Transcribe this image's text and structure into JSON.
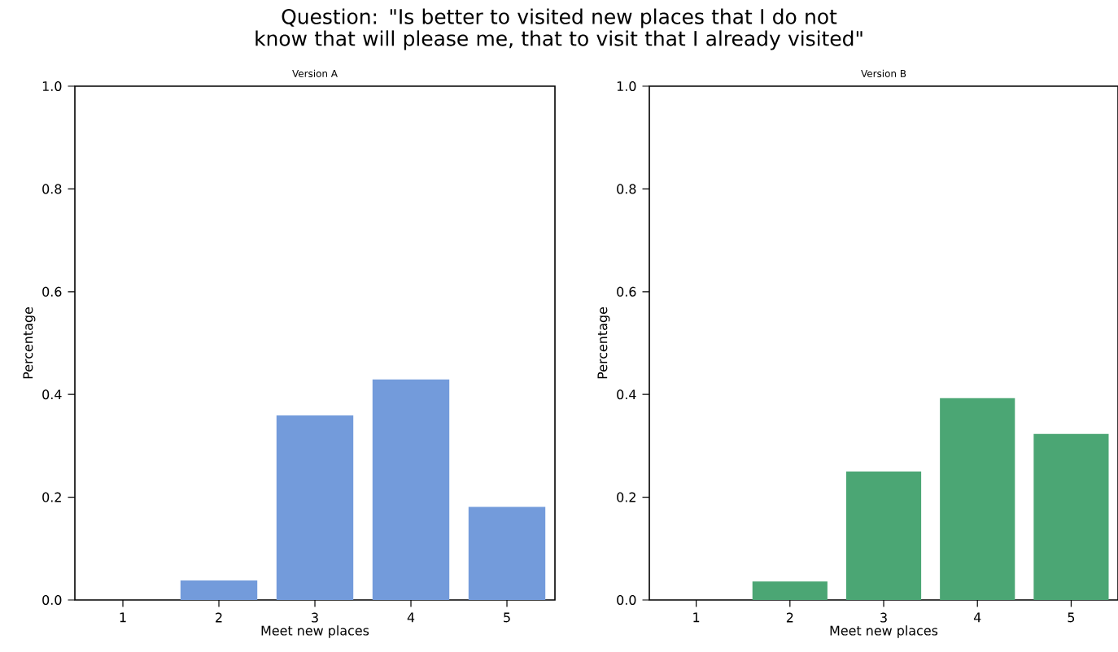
{
  "chart_data": [
    {
      "type": "bar",
      "title": "Version A",
      "xlabel": "Meet new places",
      "ylabel": "Percentage",
      "categories": [
        "1",
        "2",
        "3",
        "4",
        "5"
      ],
      "values": [
        0,
        0.038,
        0.359,
        0.429,
        0.181
      ],
      "color": "#739bdb",
      "ylim": [
        0,
        1
      ],
      "yticks": [
        {
          "value": 0,
          "label": "0.0"
        },
        {
          "value": 0.2,
          "label": "0.2"
        },
        {
          "value": 0.4,
          "label": "0.4"
        },
        {
          "value": 0.6,
          "label": "0.6"
        },
        {
          "value": 0.8,
          "label": "0.8"
        },
        {
          "value": 1,
          "label": "1.0"
        }
      ],
      "annotations": [
        "Question: \"Is better to visited new places that I do not know that will please me, that to visit that I already visited\""
      ]
    },
    {
      "type": "bar",
      "title": "Version B",
      "xlabel": "Meet new places",
      "ylabel": "Percentage",
      "categories": [
        "1",
        "2",
        "3",
        "4",
        "5"
      ],
      "values": [
        0,
        0.036,
        0.25,
        0.393,
        0.323
      ],
      "color": "#4ba674",
      "ylim": [
        0,
        1
      ],
      "yticks": [
        {
          "value": 0,
          "label": "0.0"
        },
        {
          "value": 0.2,
          "label": "0.2"
        },
        {
          "value": 0.4,
          "label": "0.4"
        },
        {
          "value": 0.6,
          "label": "0.6"
        },
        {
          "value": 0.8,
          "label": "0.8"
        },
        {
          "value": 1,
          "label": "1.0"
        }
      ]
    }
  ]
}
